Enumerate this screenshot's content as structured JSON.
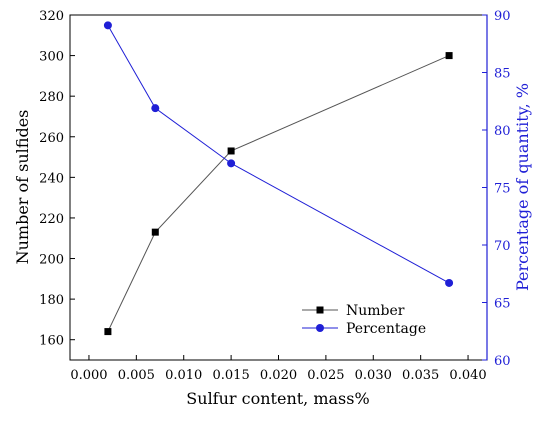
{
  "chart_data": {
    "type": "line",
    "x": [
      0.002,
      0.007,
      0.015,
      0.038
    ],
    "xlabel": "Sulfur content, mass%",
    "xlim": [
      -0.002,
      0.042
    ],
    "xticks": [
      "0.000",
      "0.005",
      "0.010",
      "0.015",
      "0.020",
      "0.025",
      "0.030",
      "0.035",
      "0.040"
    ],
    "xtick_values": [
      0.0,
      0.005,
      0.01,
      0.015,
      0.02,
      0.025,
      0.03,
      0.035,
      0.04
    ],
    "y_left": {
      "label": "Number of sulfides",
      "ylim": [
        150,
        320
      ],
      "ticks": [
        "160",
        "180",
        "200",
        "220",
        "240",
        "260",
        "280",
        "300",
        "320"
      ],
      "tick_values": [
        160,
        180,
        200,
        220,
        240,
        260,
        280,
        300,
        320
      ],
      "color": "#000000"
    },
    "y_right": {
      "label": "Percentage of quantity, %",
      "ylim": [
        60,
        90
      ],
      "ticks": [
        "60",
        "65",
        "70",
        "75",
        "80",
        "85",
        "90"
      ],
      "tick_values": [
        60,
        65,
        70,
        75,
        80,
        85,
        90
      ],
      "color": "#1f1fd6"
    },
    "series": [
      {
        "name": "Number",
        "axis": "left",
        "marker": "square",
        "color": "#000000",
        "line_color": "#555555",
        "values": [
          164,
          213,
          253,
          300
        ]
      },
      {
        "name": "Percentage",
        "axis": "right",
        "marker": "circle",
        "color": "#1f1fd6",
        "line_color": "#1f1fd6",
        "values": [
          89.1,
          81.9,
          77.1,
          66.7
        ]
      }
    ],
    "legend_position": "bottom-right",
    "grid": false
  }
}
